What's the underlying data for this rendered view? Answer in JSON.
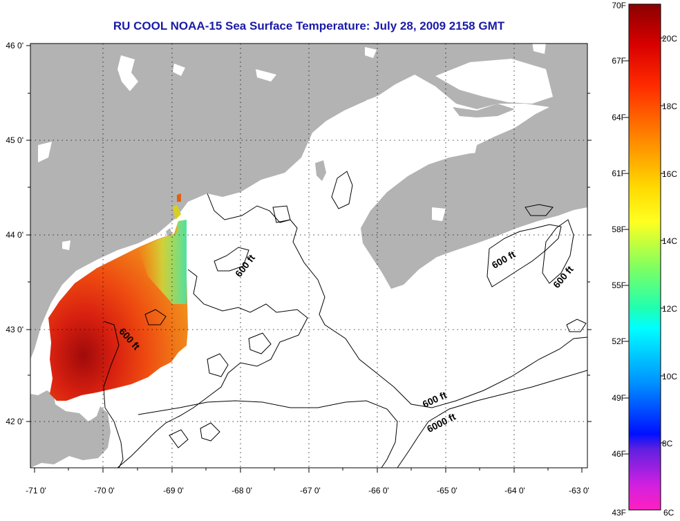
{
  "title": "RU COOL  NOAA-15  Sea Surface Temperature:  July 28, 2009 2158 GMT",
  "map": {
    "lon_ticks": [
      "-71 0'",
      "-70 0'",
      "-69 0'",
      "-68 0'",
      "-67 0'",
      "-66 0'",
      "-65 0'",
      "-64 0'",
      "-63 0'"
    ],
    "lat_ticks": [
      "46 0'",
      "45 0'",
      "44 0'",
      "43 0'",
      "42 0'"
    ],
    "land_color": "#b3b3b3",
    "ocean_color": "#ffffff",
    "contour_labels": [
      "600 ft",
      "600 ft",
      "600 ft",
      "600 ft",
      "600 ft",
      "6000 ft"
    ]
  },
  "colorbar": {
    "fahrenheit": [
      "70F",
      "67F",
      "64F",
      "61F",
      "58F",
      "55F",
      "52F",
      "49F",
      "46F",
      "43F"
    ],
    "celsius": [
      "20C",
      "18C",
      "16C",
      "14C",
      "12C",
      "10C",
      "8C",
      "6C"
    ]
  }
}
